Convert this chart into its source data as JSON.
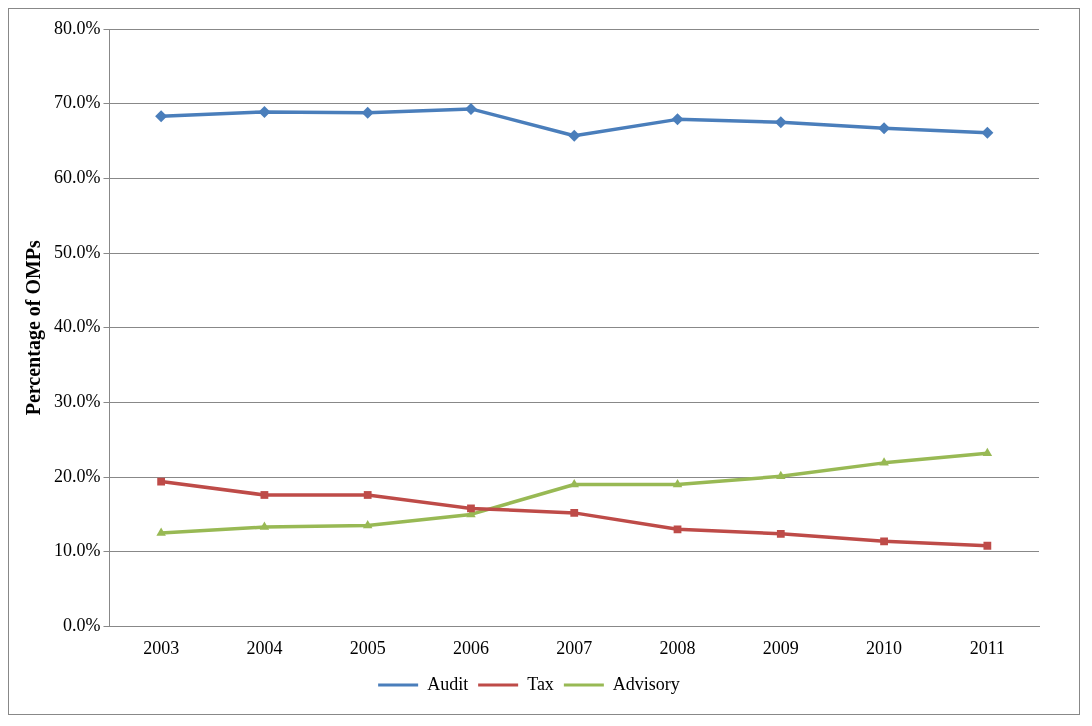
{
  "chart_data": {
    "type": "line",
    "ylabel": "Percentage of OMPs",
    "categories": [
      "2003",
      "2004",
      "2005",
      "2006",
      "2007",
      "2008",
      "2009",
      "2010",
      "2011"
    ],
    "series": [
      {
        "name": "Audit",
        "color": "#4a7ebb",
        "marker": "diamond",
        "values": [
          68.3,
          68.9,
          68.8,
          69.3,
          65.7,
          67.9,
          67.5,
          66.7,
          66.1
        ]
      },
      {
        "name": "Tax",
        "color": "#be4b48",
        "marker": "square",
        "values": [
          19.4,
          17.6,
          17.6,
          15.8,
          15.2,
          13.0,
          12.4,
          11.4,
          10.8
        ]
      },
      {
        "name": "Advisory",
        "color": "#98b954",
        "marker": "triangle",
        "values": [
          12.5,
          13.3,
          13.5,
          15.0,
          19.0,
          19.0,
          20.1,
          21.9,
          23.2
        ]
      }
    ],
    "ylim": [
      0,
      80
    ],
    "yticks": [
      {
        "value": 0,
        "label": "0.0%"
      },
      {
        "value": 10,
        "label": "10.0%"
      },
      {
        "value": 20,
        "label": "20.0%"
      },
      {
        "value": 30,
        "label": "30.0%"
      },
      {
        "value": 40,
        "label": "40.0%"
      },
      {
        "value": 50,
        "label": "50.0%"
      },
      {
        "value": 60,
        "label": "60.0%"
      },
      {
        "value": 70,
        "label": "70.0%"
      },
      {
        "value": 80,
        "label": "80.0%"
      }
    ],
    "grid": "y",
    "legend": "bottom",
    "line_style": "solid"
  }
}
